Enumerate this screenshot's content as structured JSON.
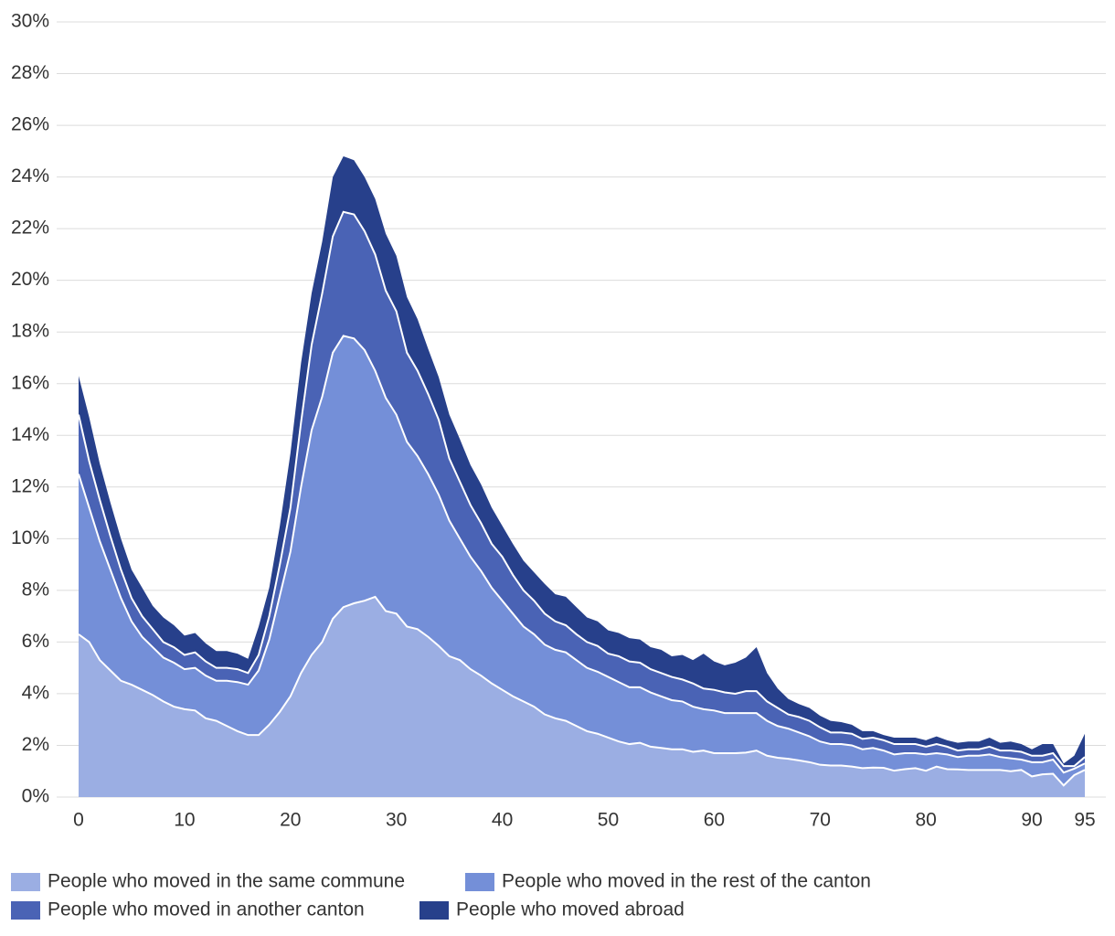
{
  "chart_data": {
    "type": "stacked_area",
    "x": [
      0,
      1,
      2,
      3,
      4,
      5,
      6,
      7,
      8,
      9,
      10,
      11,
      12,
      13,
      14,
      15,
      16,
      17,
      18,
      19,
      20,
      21,
      22,
      23,
      24,
      25,
      26,
      27,
      28,
      29,
      30,
      31,
      32,
      33,
      34,
      35,
      36,
      37,
      38,
      39,
      40,
      41,
      42,
      43,
      44,
      45,
      46,
      47,
      48,
      49,
      50,
      51,
      52,
      53,
      54,
      55,
      56,
      57,
      58,
      59,
      60,
      61,
      62,
      63,
      64,
      65,
      66,
      67,
      68,
      69,
      70,
      71,
      72,
      73,
      74,
      75,
      76,
      77,
      78,
      79,
      80,
      81,
      82,
      83,
      84,
      85,
      86,
      87,
      88,
      89,
      90,
      91,
      92,
      93,
      94,
      95
    ],
    "series": [
      {
        "name": "People who moved in the same commune",
        "color": "#9baee3",
        "values": [
          6.3,
          6.0,
          5.3,
          4.9,
          4.5,
          4.35,
          4.15,
          3.95,
          3.7,
          3.5,
          3.4,
          3.35,
          3.05,
          2.95,
          2.75,
          2.55,
          2.4,
          2.4,
          2.8,
          3.3,
          3.9,
          4.8,
          5.5,
          6.0,
          6.9,
          7.35,
          7.5,
          7.6,
          7.75,
          7.2,
          7.1,
          6.6,
          6.5,
          6.2,
          5.85,
          5.45,
          5.3,
          4.95,
          4.7,
          4.4,
          4.15,
          3.9,
          3.7,
          3.5,
          3.2,
          3.05,
          2.95,
          2.75,
          2.55,
          2.45,
          2.3,
          2.15,
          2.05,
          2.1,
          1.95,
          1.9,
          1.85,
          1.85,
          1.75,
          1.8,
          1.7,
          1.7,
          1.7,
          1.72,
          1.8,
          1.6,
          1.52,
          1.48,
          1.42,
          1.35,
          1.25,
          1.22,
          1.22,
          1.18,
          1.12,
          1.14,
          1.13,
          1.02,
          1.08,
          1.12,
          1.02,
          1.18,
          1.08,
          1.07,
          1.05,
          1.05,
          1.05,
          1.05,
          1.0,
          1.05,
          0.8,
          0.88,
          0.9,
          0.45,
          0.85,
          1.05
        ]
      },
      {
        "name": "People who moved in the rest of the canton",
        "color": "#748fd8",
        "values": [
          6.2,
          5.2,
          4.6,
          3.9,
          3.2,
          2.45,
          2.05,
          1.85,
          1.7,
          1.7,
          1.55,
          1.65,
          1.65,
          1.55,
          1.75,
          1.9,
          1.95,
          2.5,
          3.3,
          4.5,
          5.6,
          7.2,
          8.7,
          9.5,
          10.3,
          10.5,
          10.25,
          9.7,
          8.75,
          8.25,
          7.7,
          7.15,
          6.7,
          6.3,
          5.85,
          5.25,
          4.7,
          4.35,
          4.05,
          3.7,
          3.45,
          3.2,
          2.9,
          2.8,
          2.7,
          2.65,
          2.65,
          2.55,
          2.45,
          2.4,
          2.35,
          2.3,
          2.2,
          2.15,
          2.1,
          2.0,
          1.9,
          1.85,
          1.75,
          1.6,
          1.65,
          1.55,
          1.55,
          1.53,
          1.45,
          1.35,
          1.23,
          1.17,
          1.08,
          1.0,
          0.9,
          0.83,
          0.83,
          0.82,
          0.73,
          0.76,
          0.67,
          0.63,
          0.62,
          0.58,
          0.63,
          0.52,
          0.57,
          0.48,
          0.55,
          0.55,
          0.6,
          0.5,
          0.5,
          0.4,
          0.55,
          0.47,
          0.55,
          0.5,
          0.25,
          0.25
        ]
      },
      {
        "name": "People who moved in another canton",
        "color": "#4a63b5",
        "values": [
          2.3,
          1.8,
          1.6,
          1.3,
          1.1,
          0.9,
          0.8,
          0.7,
          0.6,
          0.6,
          0.55,
          0.6,
          0.55,
          0.5,
          0.5,
          0.5,
          0.45,
          0.6,
          0.9,
          1.2,
          1.7,
          2.5,
          3.3,
          4.0,
          4.5,
          4.8,
          4.8,
          4.6,
          4.5,
          4.15,
          4.0,
          3.45,
          3.3,
          3.1,
          2.9,
          2.4,
          2.2,
          2.0,
          1.85,
          1.7,
          1.7,
          1.5,
          1.4,
          1.3,
          1.2,
          1.1,
          1.05,
          1.0,
          1.0,
          1.0,
          0.9,
          1.0,
          1.0,
          0.95,
          0.9,
          0.9,
          0.9,
          0.85,
          0.9,
          0.8,
          0.8,
          0.8,
          0.75,
          0.85,
          0.85,
          0.75,
          0.7,
          0.55,
          0.6,
          0.6,
          0.55,
          0.45,
          0.45,
          0.45,
          0.4,
          0.4,
          0.4,
          0.4,
          0.35,
          0.35,
          0.3,
          0.35,
          0.3,
          0.25,
          0.25,
          0.25,
          0.3,
          0.25,
          0.3,
          0.3,
          0.25,
          0.25,
          0.25,
          0.25,
          0.1,
          0.25
        ]
      },
      {
        "name": "People who moved abroad",
        "color": "#27408b",
        "values": [
          1.5,
          1.7,
          1.4,
          1.3,
          1.2,
          1.1,
          1.1,
          0.9,
          0.95,
          0.85,
          0.75,
          0.75,
          0.7,
          0.65,
          0.65,
          0.6,
          0.55,
          1.1,
          1.1,
          1.5,
          2.1,
          2.3,
          2.0,
          2.0,
          2.3,
          2.15,
          2.1,
          2.1,
          2.15,
          2.2,
          2.15,
          2.15,
          2.0,
          1.75,
          1.65,
          1.7,
          1.65,
          1.55,
          1.5,
          1.4,
          1.2,
          1.2,
          1.15,
          1.1,
          1.15,
          1.05,
          1.1,
          1.05,
          0.95,
          0.95,
          0.9,
          0.9,
          0.9,
          0.9,
          0.85,
          0.9,
          0.8,
          0.95,
          0.9,
          1.35,
          1.1,
          1.05,
          1.2,
          1.3,
          1.7,
          1.1,
          0.75,
          0.6,
          0.5,
          0.5,
          0.45,
          0.45,
          0.4,
          0.35,
          0.3,
          0.25,
          0.2,
          0.25,
          0.25,
          0.25,
          0.25,
          0.3,
          0.25,
          0.3,
          0.3,
          0.3,
          0.35,
          0.3,
          0.35,
          0.3,
          0.25,
          0.45,
          0.35,
          0.1,
          0.4,
          0.9
        ]
      }
    ],
    "xlim": [
      0,
      95
    ],
    "xticks": [
      0,
      10,
      20,
      30,
      40,
      50,
      60,
      70,
      80,
      90,
      95
    ],
    "ylim": [
      0,
      30
    ],
    "yticks": [
      {
        "value": 0,
        "label": "0%"
      },
      {
        "value": 2,
        "label": "2%"
      },
      {
        "value": 4,
        "label": "4%"
      },
      {
        "value": 6,
        "label": "6%"
      },
      {
        "value": 8,
        "label": "8%"
      },
      {
        "value": 10,
        "label": "10%"
      },
      {
        "value": 12,
        "label": "12%"
      },
      {
        "value": 14,
        "label": "14%"
      },
      {
        "value": 16,
        "label": "16%"
      },
      {
        "value": 18,
        "label": "18%"
      },
      {
        "value": 20,
        "label": "20%"
      },
      {
        "value": 22,
        "label": "22%"
      },
      {
        "value": 24,
        "label": "24%"
      },
      {
        "value": 26,
        "label": "26%"
      },
      {
        "value": 28,
        "label": "28%"
      },
      {
        "value": 30,
        "label": "30%"
      }
    ],
    "grid": true
  }
}
